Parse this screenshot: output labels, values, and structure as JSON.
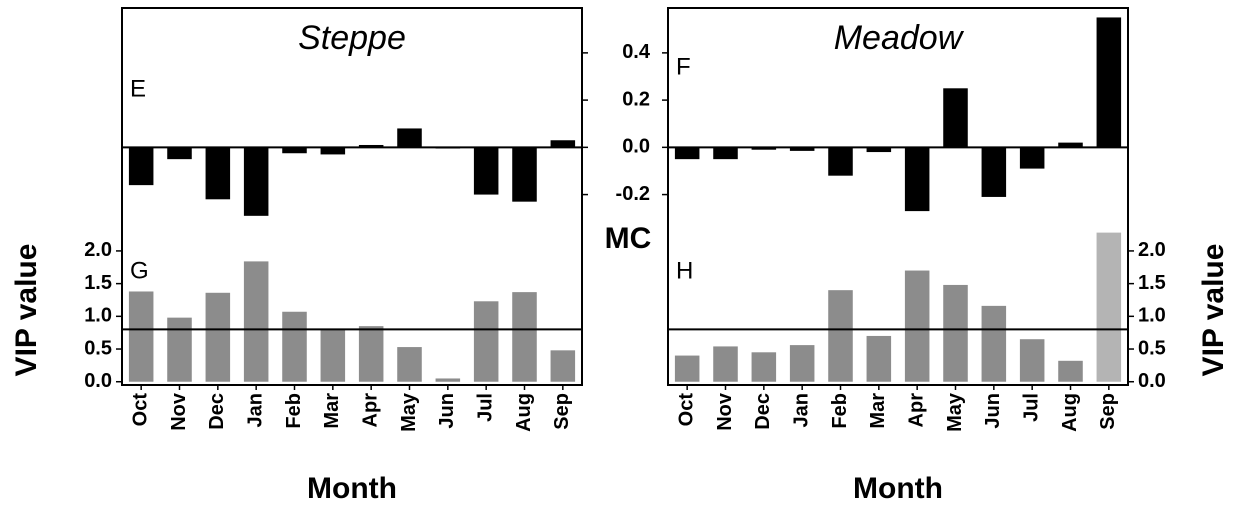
{
  "mc_axis": {
    "label": "MC",
    "ylim": [
      -0.35,
      0.59
    ],
    "yticks": [
      {
        "value": -0.2,
        "label": "-0.2"
      },
      {
        "value": 0,
        "label": "0.0"
      },
      0.2,
      0.4
    ]
  },
  "chart_data": [
    {
      "type": "bar",
      "title": "Steppe",
      "x_label": "Month",
      "y_label": "VIP value",
      "vip_axis_side": "left",
      "categories": [
        "Oct",
        "Nov",
        "Dec",
        "Jan",
        "Feb",
        "Mar",
        "Apr",
        "May",
        "Jun",
        "Jul",
        "Aug",
        "Sep"
      ],
      "mc": {
        "panel_label": "E",
        "color": "#000000",
        "values": [
          -0.16,
          -0.05,
          -0.22,
          -0.29,
          -0.025,
          -0.03,
          0.01,
          0.08,
          -0.005,
          -0.2,
          -0.23,
          0.03
        ]
      },
      "vip": {
        "panel_label": "G",
        "colors": [
          "#8c8c8c",
          "#8c8c8c",
          "#8c8c8c",
          "#8c8c8c",
          "#8c8c8c",
          "#8c8c8c",
          "#8c8c8c",
          "#8c8c8c",
          "#8c8c8c",
          "#8c8c8c",
          "#8c8c8c",
          "#8c8c8c"
        ],
        "threshold": 0.8,
        "values": [
          1.38,
          0.98,
          1.36,
          1.84,
          1.07,
          0.8,
          0.85,
          0.53,
          0.05,
          1.23,
          1.37,
          0.48
        ],
        "ylim": [
          -0.05,
          2.32
        ],
        "yticks": [
          {
            "value": 0,
            "label": "0.0"
          },
          0.5,
          {
            "value": 1,
            "label": "1.0"
          },
          1.5,
          {
            "value": 2,
            "label": "2.0"
          }
        ]
      }
    },
    {
      "type": "bar",
      "title": "Meadow",
      "x_label": "Month",
      "y_label": "VIP value",
      "vip_axis_side": "right",
      "categories": [
        "Oct",
        "Nov",
        "Dec",
        "Jan",
        "Feb",
        "Mar",
        "Apr",
        "May",
        "Jun",
        "Jul",
        "Aug",
        "Sep"
      ],
      "mc": {
        "panel_label": "F",
        "color": "#000000",
        "values": [
          -0.05,
          -0.05,
          -0.01,
          -0.015,
          -0.12,
          -0.02,
          -0.27,
          0.25,
          -0.21,
          -0.09,
          0.02,
          0.55
        ]
      },
      "vip": {
        "panel_label": "H",
        "colors": [
          "#8c8c8c",
          "#8c8c8c",
          "#8c8c8c",
          "#8c8c8c",
          "#8c8c8c",
          "#8c8c8c",
          "#8c8c8c",
          "#8c8c8c",
          "#8c8c8c",
          "#8c8c8c",
          "#8c8c8c",
          "#b4b4b4"
        ],
        "threshold": 0.8,
        "values": [
          0.4,
          0.54,
          0.45,
          0.56,
          1.4,
          0.7,
          1.7,
          1.48,
          1.16,
          0.65,
          0.32,
          2.28
        ],
        "ylim": [
          -0.05,
          2.32
        ],
        "yticks": [
          {
            "value": 0,
            "label": "0.0"
          },
          0.5,
          {
            "value": 1,
            "label": "1.0"
          },
          1.5,
          {
            "value": 2,
            "label": "2.0"
          }
        ]
      }
    }
  ]
}
